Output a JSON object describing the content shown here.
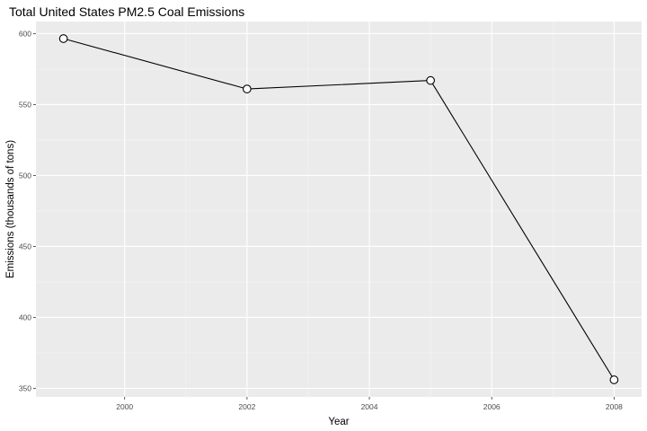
{
  "chart_data": {
    "type": "line",
    "title": "Total United States PM2.5 Coal Emissions",
    "xlabel": "Year",
    "ylabel": "Emissions (thousands of tons)",
    "x": [
      1999,
      2002,
      2005,
      2008
    ],
    "series": [
      {
        "values": [
          596.5,
          561,
          567,
          356
        ]
      }
    ],
    "xticks": [
      2000,
      2002,
      2004,
      2006,
      2008
    ],
    "xtick_labels": [
      "2000",
      "2002",
      "2004",
      "2006",
      "2008"
    ],
    "yticks": [
      350,
      400,
      450,
      500,
      550,
      600
    ],
    "ytick_labels": [
      "350",
      "400",
      "450",
      "500",
      "550",
      "600"
    ],
    "xlim": [
      1998.55,
      2008.45
    ],
    "ylim": [
      343.98,
      608.53
    ],
    "grid": true,
    "legend": "none",
    "colors": {
      "panel_background": "#ebebeb",
      "grid_major": "#ffffff",
      "grid_minor": "#f5f5f5",
      "line": "#000000",
      "point_fill": "#ffffff",
      "point_stroke": "#000000",
      "tick_text": "#4d4d4d",
      "tick_mark": "#333333"
    }
  }
}
